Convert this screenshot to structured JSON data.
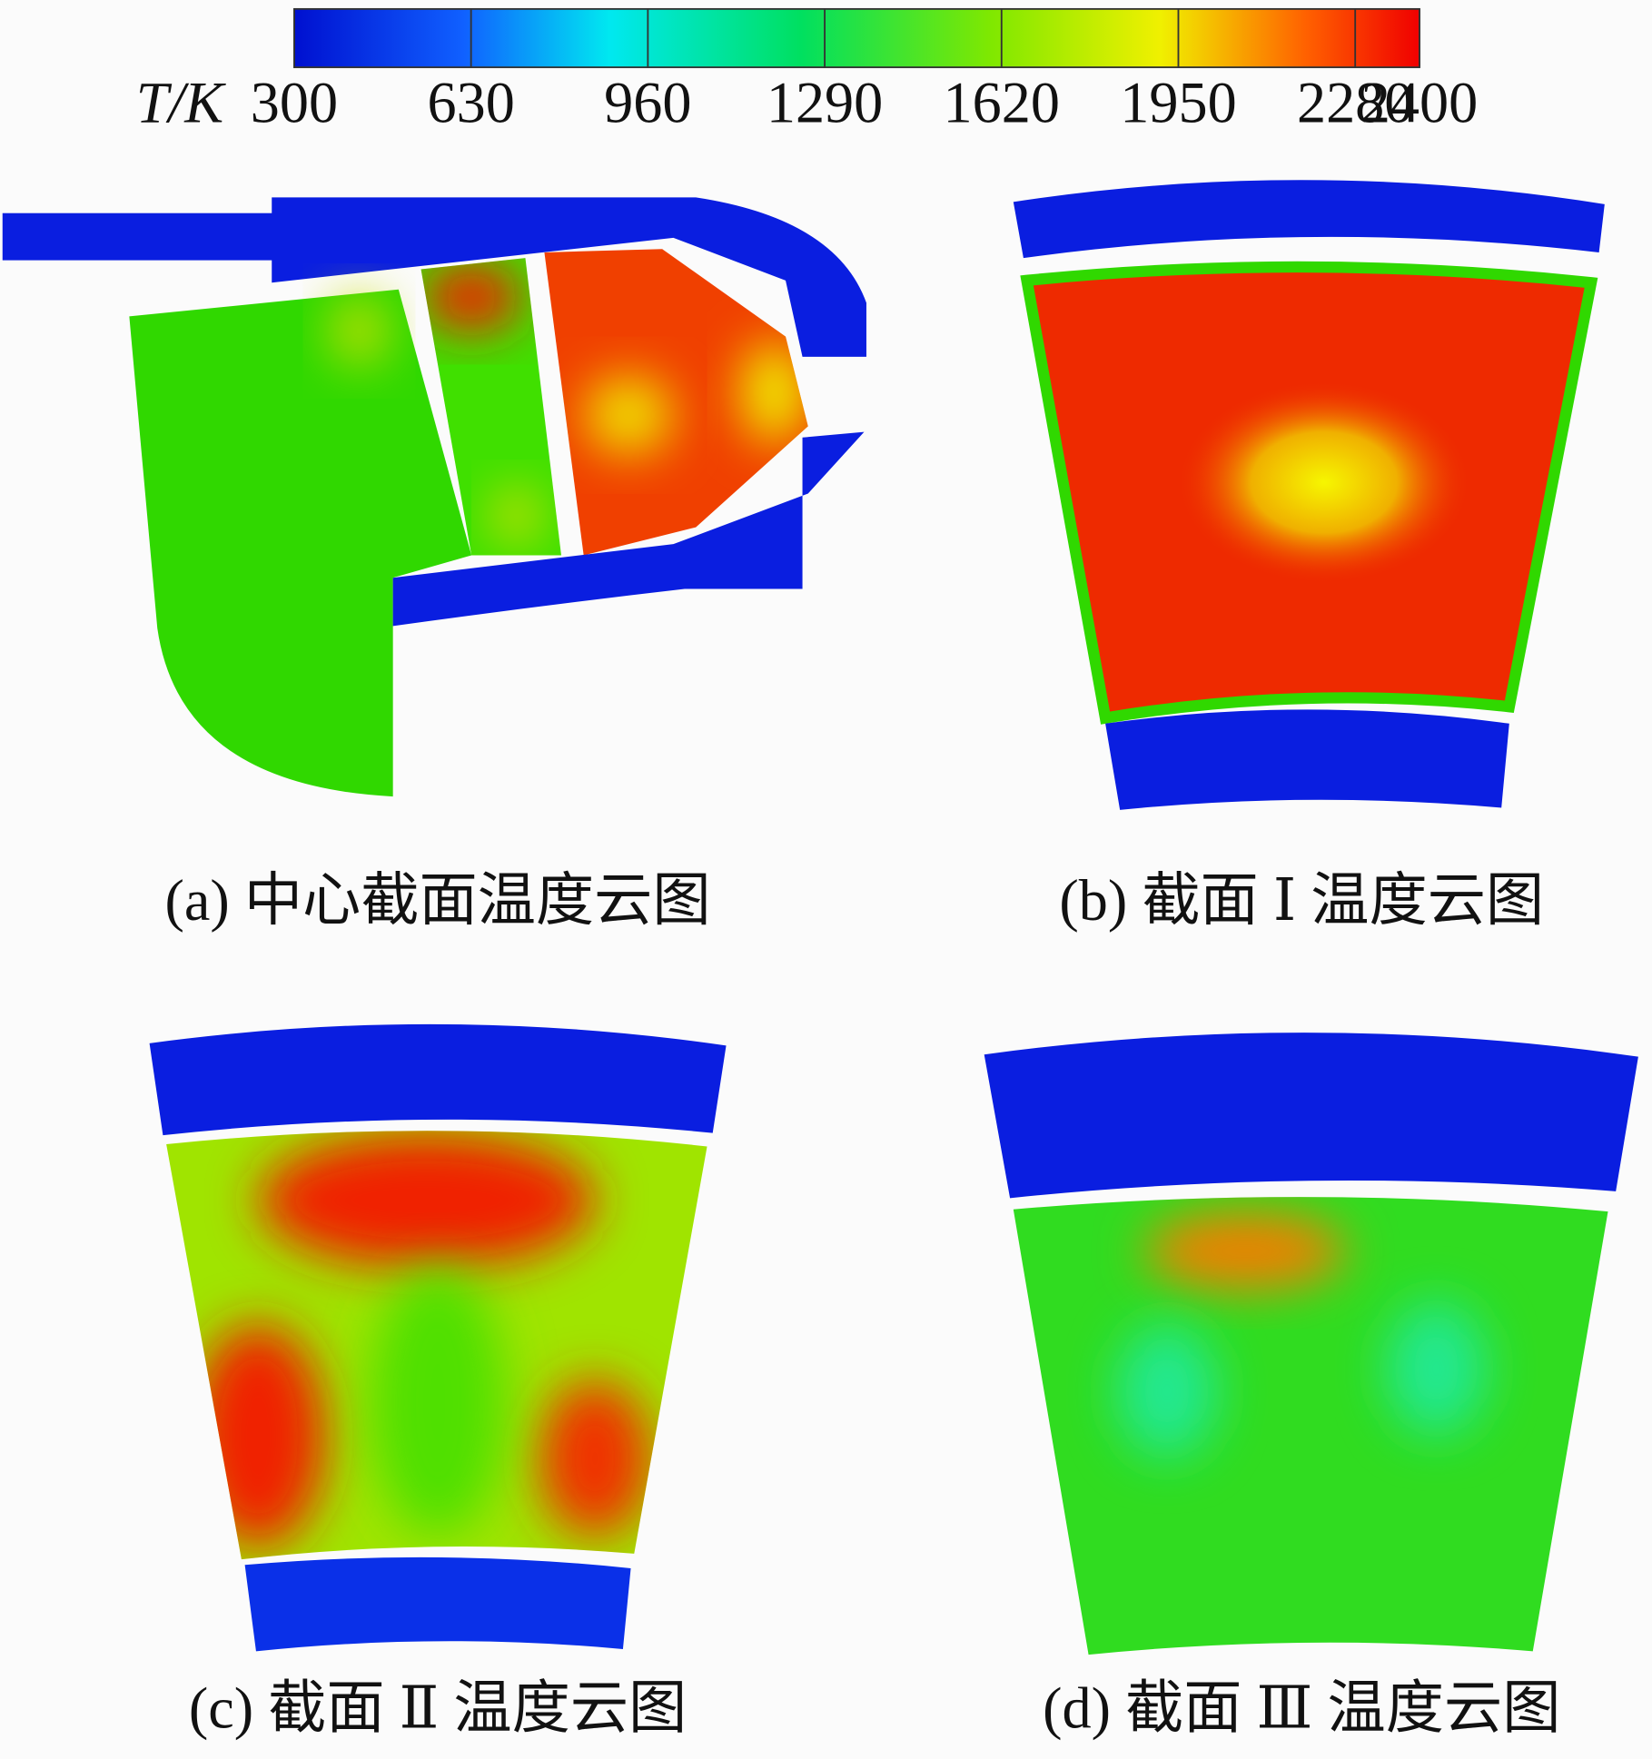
{
  "colorbar": {
    "label": "T/K",
    "range": [
      300,
      2400
    ],
    "ticks": [
      300,
      630,
      960,
      1290,
      1620,
      1950,
      2280,
      2400
    ]
  },
  "panels": [
    {
      "caption": "(a) 中心截面温度云图"
    },
    {
      "caption": "(b) 截面 Ⅰ 温度云图"
    },
    {
      "caption": "(c) 截面 Ⅱ 温度云图"
    },
    {
      "caption": "(d) 截面 Ⅲ 温度云图"
    }
  ]
}
